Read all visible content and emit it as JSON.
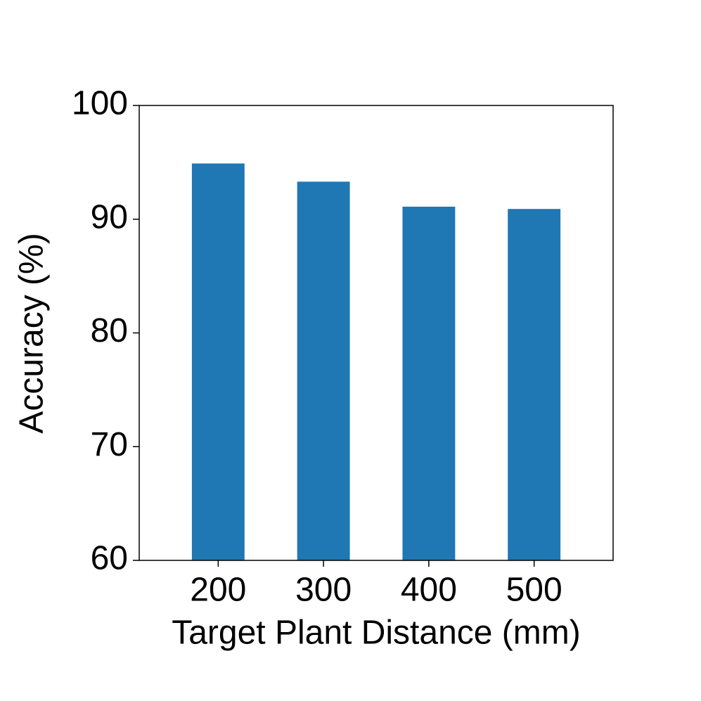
{
  "chart_data": {
    "type": "bar",
    "x_label": "Target Plant Distance (mm)",
    "y_label": "Accuracy (%)",
    "categories": [
      "200",
      "300",
      "400",
      "500"
    ],
    "values": [
      94.9,
      93.3,
      91.1,
      90.9
    ],
    "color": "#1f77b4",
    "ylim": [
      60,
      100
    ],
    "yticks": [
      60,
      70,
      80,
      90,
      100
    ],
    "grid": false
  }
}
